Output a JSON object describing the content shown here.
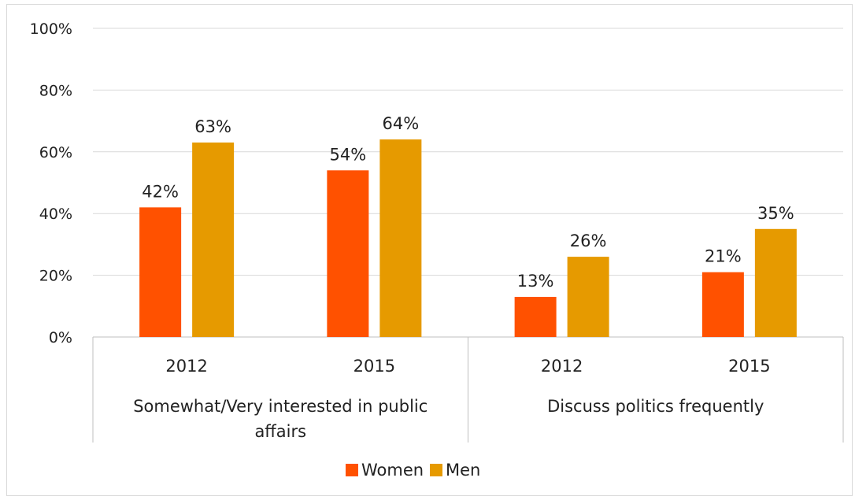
{
  "chart_data": {
    "type": "bar",
    "groups": [
      {
        "label_lines": [
          "Somewhat/Very interested in public",
          "affairs"
        ],
        "categories": [
          "2012",
          "2015"
        ]
      },
      {
        "label_lines": [
          "Discuss politics frequently"
        ],
        "categories": [
          "2012",
          "2015"
        ]
      }
    ],
    "categories": [
      "2012",
      "2015",
      "2012",
      "2015"
    ],
    "series": [
      {
        "name": "Women",
        "color": "#ff5100",
        "values": [
          42,
          54,
          13,
          21
        ]
      },
      {
        "name": "Men",
        "color": "#e69a00",
        "values": [
          63,
          64,
          26,
          35
        ]
      }
    ],
    "value_labels": {
      "Women": [
        "42%",
        "54%",
        "13%",
        "21%"
      ],
      "Men": [
        "63%",
        "64%",
        "26%",
        "35%"
      ]
    },
    "ylim": [
      0,
      100
    ],
    "yticks": [
      "0%",
      "20%",
      "40%",
      "60%",
      "80%",
      "100%"
    ],
    "ytick_values": [
      0,
      20,
      40,
      60,
      80,
      100
    ],
    "grid": true,
    "legend_position": "bottom"
  }
}
